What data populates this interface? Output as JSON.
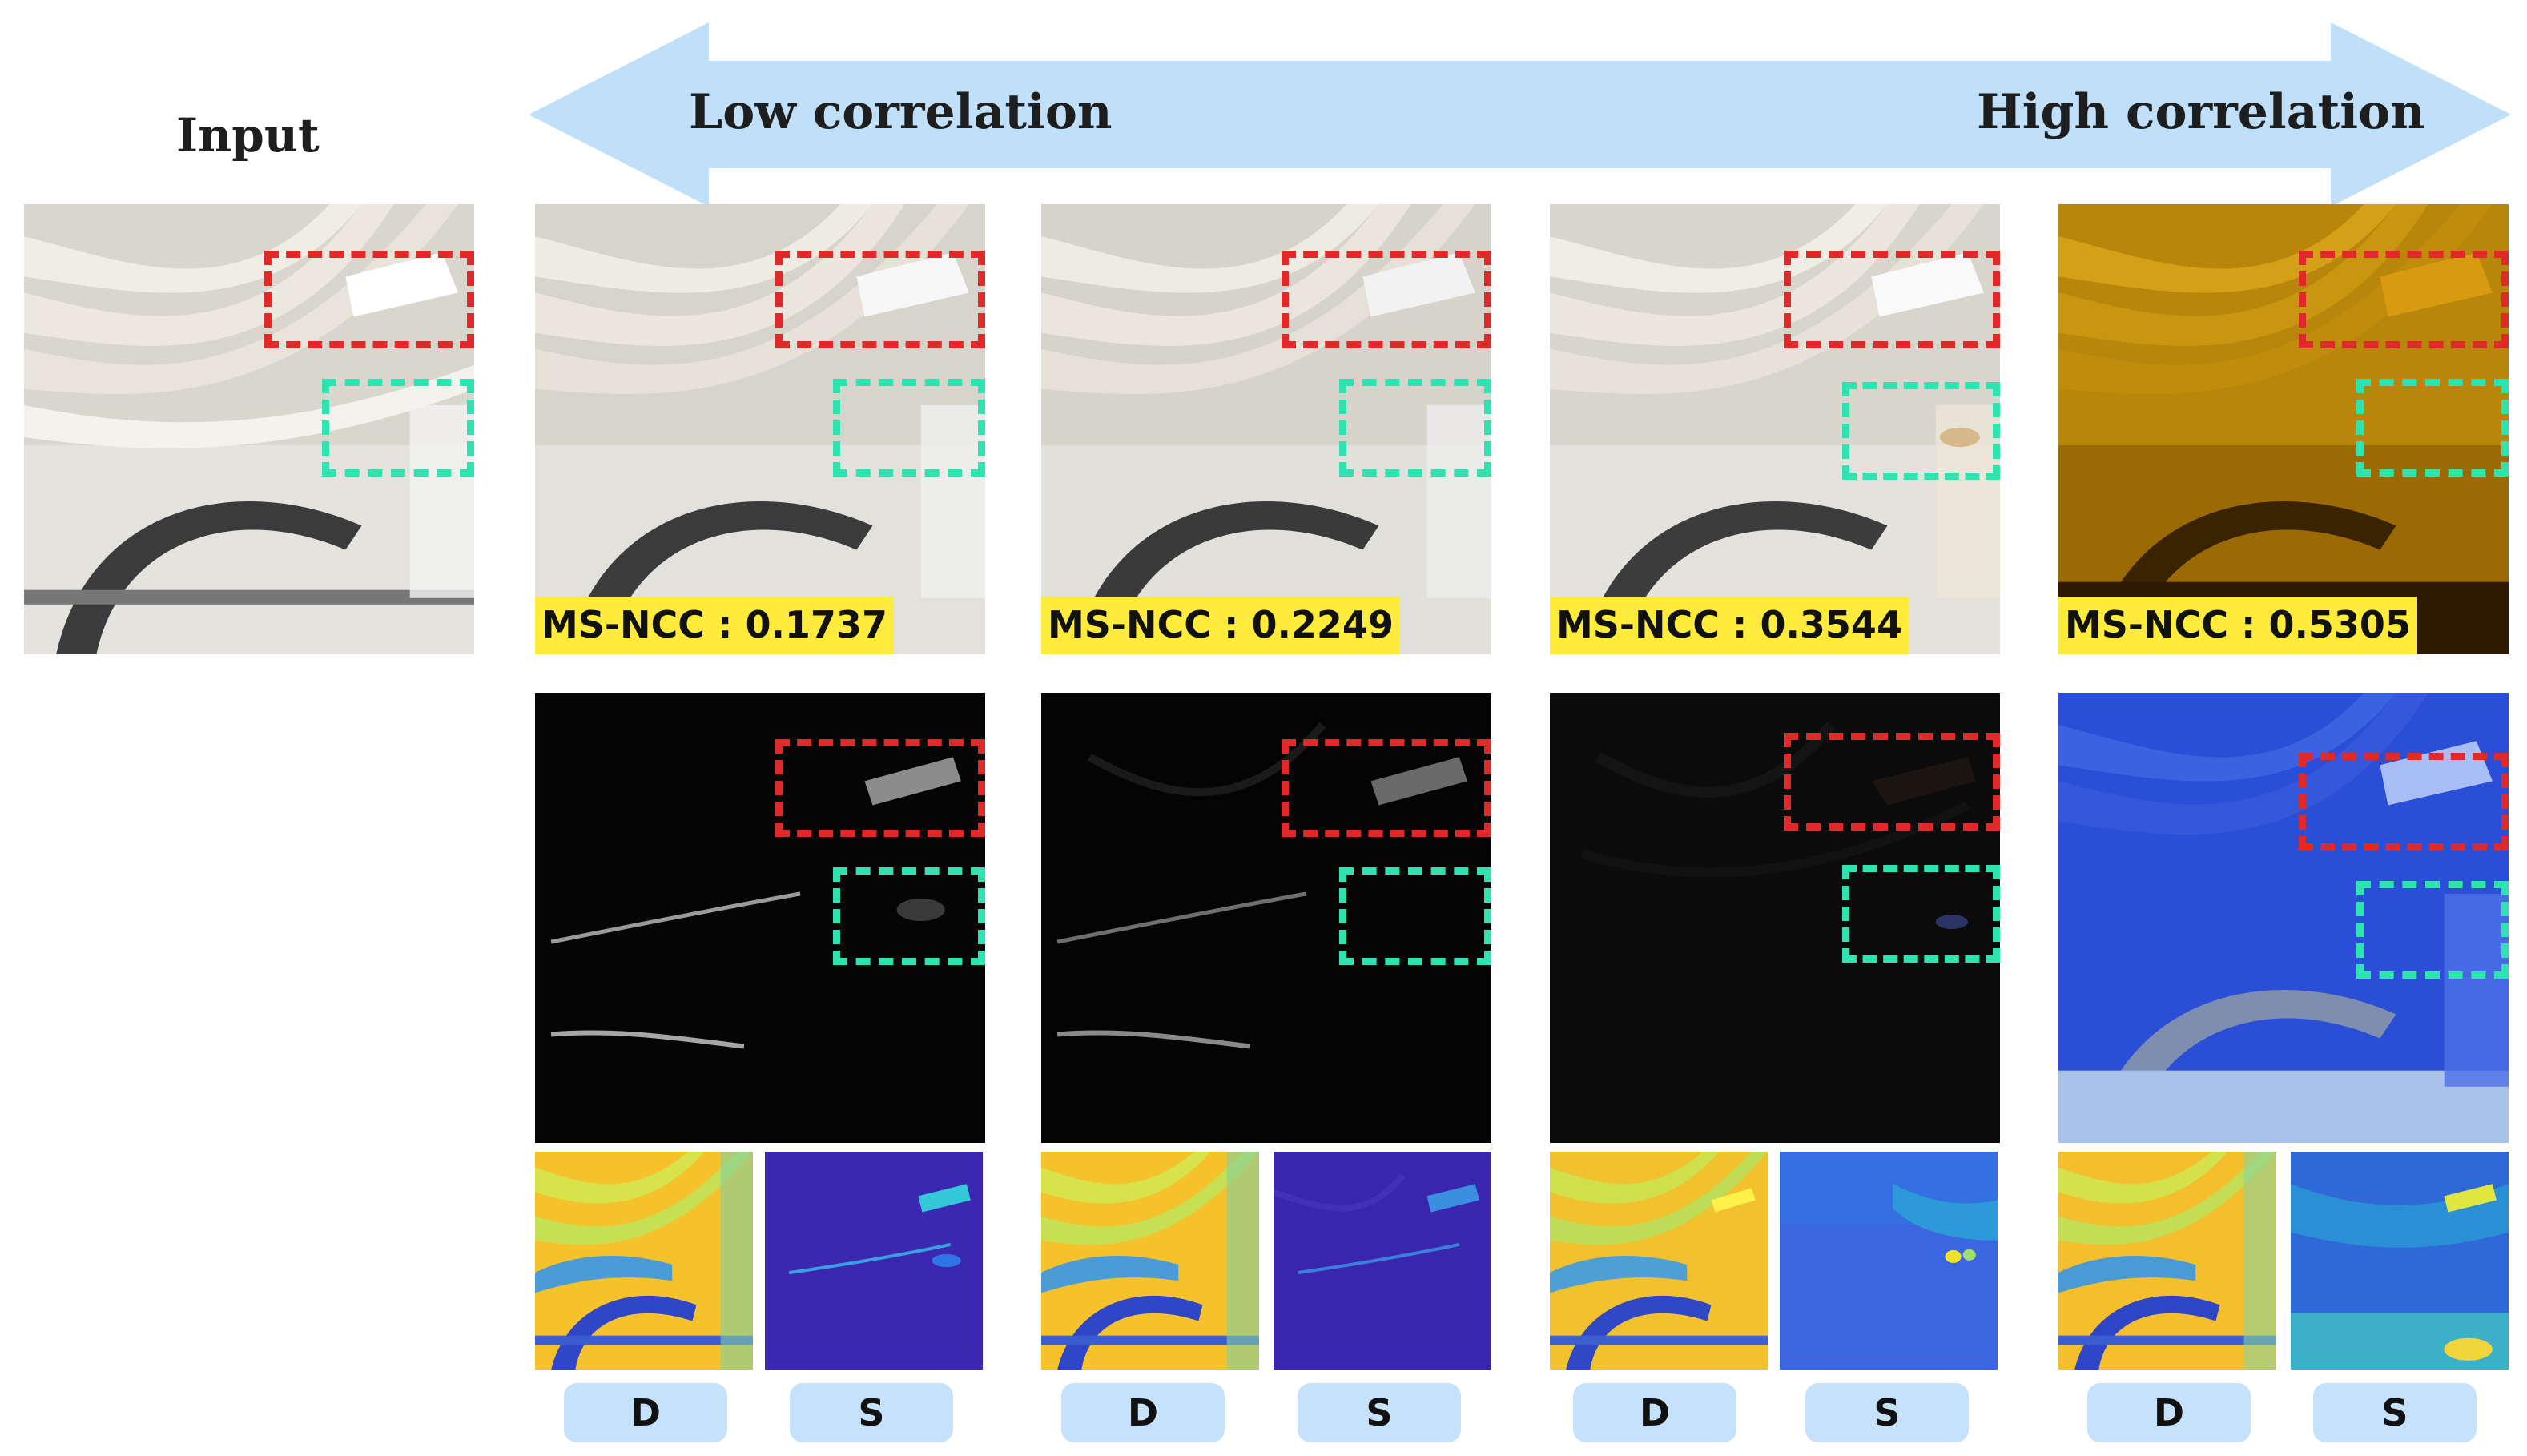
{
  "header": {
    "input_label": "Input",
    "low_label": "Low correlation",
    "high_label": "High correlation"
  },
  "columns": [
    {
      "metric": "MS-NCC : 0.1737",
      "d_tag": "D",
      "s_tag": "S"
    },
    {
      "metric": "MS-NCC : 0.2249",
      "d_tag": "D",
      "s_tag": "S"
    },
    {
      "metric": "MS-NCC : 0.3544",
      "d_tag": "D",
      "s_tag": "S"
    },
    {
      "metric": "MS-NCC : 0.5305",
      "d_tag": "D",
      "s_tag": "S"
    }
  ],
  "colors": {
    "arrow": "#bfe0f8",
    "red_box": "#e02a2a",
    "green_box": "#2fe3b0",
    "metric_bg": "#ffeb3b",
    "tag_bg": "#c6e2fa"
  }
}
